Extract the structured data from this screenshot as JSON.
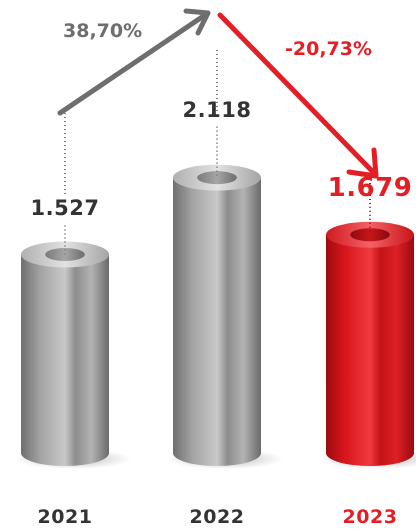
{
  "chart_data": {
    "type": "bar",
    "categories": [
      "2021",
      "2022",
      "2023"
    ],
    "values": [
      1527,
      2118,
      1679
    ],
    "value_labels": [
      "1.527",
      "2.118",
      "1.679"
    ],
    "changes": [
      {
        "from": "2021",
        "to": "2022",
        "label": "38,70%",
        "direction": "up"
      },
      {
        "from": "2022",
        "to": "2023",
        "label": "-20,73%",
        "direction": "down"
      }
    ],
    "title": "",
    "xlabel": "",
    "ylabel": "",
    "grid": false,
    "legend": "none"
  },
  "colors": {
    "gray_bar": "#9a9a9a",
    "gray_dark": "#5a5a5a",
    "red_bar": "#d8161c",
    "red_text": "#e31e24",
    "text_dark": "#333333",
    "arrow_gray": "#6e6e6e",
    "arrow_red": "#e31e24"
  }
}
